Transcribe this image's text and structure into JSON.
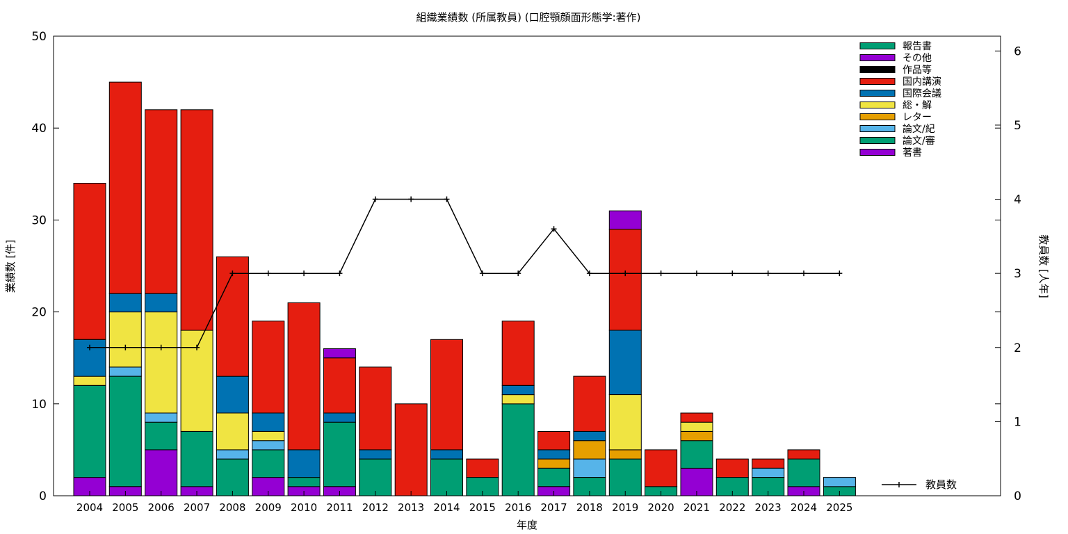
{
  "chart_data": {
    "type": "bar",
    "stacked": true,
    "title": "組織業績数 (所属教員) (口腔顎顔面形態学:著作)",
    "xlabel": "年度",
    "ylabel": "業績数 [件]",
    "y2label": "教員数 [人年]",
    "ylim": [
      0,
      50
    ],
    "y2lim": [
      0,
      6.2
    ],
    "yticks": [
      "0",
      "10",
      "20",
      "30",
      "40",
      "50"
    ],
    "y2ticks": [
      "0",
      "1",
      "2",
      "3",
      "4",
      "5",
      "6"
    ],
    "grid": false,
    "legend_position": "top-right",
    "categories": [
      "2004",
      "2005",
      "2006",
      "2007",
      "2008",
      "2009",
      "2010",
      "2011",
      "2012",
      "2013",
      "2014",
      "2015",
      "2016",
      "2017",
      "2018",
      "2019",
      "2020",
      "2021",
      "2022",
      "2023",
      "2024",
      "2025"
    ],
    "series": [
      {
        "name": "著書",
        "color": "#9400d3",
        "values": [
          2,
          1,
          5,
          1,
          0,
          2,
          1,
          1,
          0,
          0,
          0,
          0,
          0,
          1,
          0,
          0,
          0,
          3,
          0,
          0,
          1,
          0
        ]
      },
      {
        "name": "論文/審",
        "color": "#009e73",
        "values": [
          10,
          12,
          3,
          6,
          4,
          3,
          1,
          7,
          4,
          0,
          4,
          2,
          10,
          2,
          2,
          4,
          1,
          3,
          2,
          2,
          3,
          1
        ]
      },
      {
        "name": "論文/紀",
        "color": "#56b4e9",
        "values": [
          0,
          1,
          1,
          0,
          1,
          1,
          0,
          0,
          0,
          0,
          0,
          0,
          0,
          0,
          2,
          0,
          0,
          0,
          0,
          1,
          0,
          1
        ]
      },
      {
        "name": "レター",
        "color": "#e69f00",
        "values": [
          0,
          0,
          0,
          0,
          0,
          0,
          0,
          0,
          0,
          0,
          0,
          0,
          0,
          1,
          2,
          1,
          0,
          1,
          0,
          0,
          0,
          0
        ]
      },
      {
        "name": "総・解",
        "color": "#f0e442",
        "values": [
          1,
          6,
          11,
          11,
          4,
          1,
          0,
          0,
          0,
          0,
          0,
          0,
          1,
          0,
          0,
          6,
          0,
          1,
          0,
          0,
          0,
          0
        ]
      },
      {
        "name": "国際会議",
        "color": "#0072b2",
        "values": [
          4,
          2,
          2,
          0,
          4,
          2,
          3,
          1,
          1,
          0,
          1,
          0,
          1,
          1,
          1,
          7,
          0,
          0,
          0,
          0,
          0,
          0
        ]
      },
      {
        "name": "国内講演",
        "color": "#e51e10",
        "values": [
          17,
          23,
          20,
          24,
          13,
          10,
          16,
          6,
          9,
          10,
          12,
          2,
          7,
          2,
          6,
          11,
          4,
          1,
          2,
          1,
          1,
          0
        ]
      },
      {
        "name": "作品等",
        "color": "#000000",
        "values": [
          0,
          0,
          0,
          0,
          0,
          0,
          0,
          0,
          0,
          0,
          0,
          0,
          0,
          0,
          0,
          0,
          0,
          0,
          0,
          0,
          0,
          0
        ]
      },
      {
        "name": "その他",
        "color": "#9400d3",
        "values": [
          0,
          0,
          0,
          0,
          0,
          0,
          0,
          1,
          0,
          0,
          0,
          0,
          0,
          0,
          0,
          2,
          0,
          0,
          0,
          0,
          0,
          0
        ]
      },
      {
        "name": "報告書",
        "color": "#009e73",
        "values": [
          0,
          0,
          0,
          0,
          0,
          0,
          0,
          0,
          0,
          0,
          0,
          0,
          0,
          0,
          0,
          0,
          0,
          0,
          0,
          0,
          0,
          0
        ]
      }
    ],
    "line": {
      "name": "教員数",
      "color": "#000000",
      "axis": "y2",
      "values": [
        2,
        2,
        2,
        2,
        3,
        3,
        3,
        3,
        4,
        4,
        4,
        3,
        3,
        3.6,
        3,
        3,
        3,
        3,
        3,
        3,
        3,
        3
      ]
    }
  }
}
